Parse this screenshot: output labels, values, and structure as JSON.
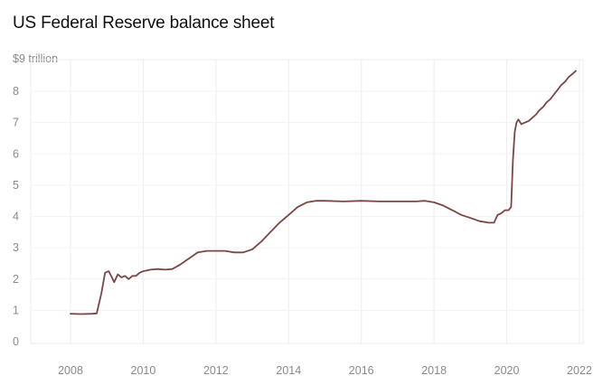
{
  "chart_data": {
    "type": "line",
    "title": "US Federal Reserve balance sheet",
    "ylabel": "$9 trillion",
    "xlabel": "",
    "xlim": [
      2007.0,
      2022.0
    ],
    "ylim": [
      0,
      9
    ],
    "x_ticks": [
      "2008",
      "2010",
      "2012",
      "2014",
      "2016",
      "2018",
      "2020",
      "2022"
    ],
    "y_ticks": [
      "0",
      "1",
      "2",
      "3",
      "4",
      "5",
      "6",
      "7",
      "8"
    ],
    "grid": true,
    "line_color": "#7a4646",
    "series": [
      {
        "x": [
          2008.0,
          2008.3,
          2008.6,
          2008.72,
          2008.85,
          2008.95,
          2009.05,
          2009.12,
          2009.2,
          2009.3,
          2009.4,
          2009.5,
          2009.6,
          2009.7,
          2009.8,
          2009.9,
          2010.0,
          2010.2,
          2010.4,
          2010.6,
          2010.8,
          2011.0,
          2011.25,
          2011.5,
          2011.75,
          2012.0,
          2012.25,
          2012.5,
          2012.75,
          2013.0,
          2013.25,
          2013.5,
          2013.75,
          2014.0,
          2014.25,
          2014.5,
          2014.75,
          2015.0,
          2015.5,
          2016.0,
          2016.5,
          2017.0,
          2017.5,
          2017.75,
          2018.0,
          2018.25,
          2018.5,
          2018.75,
          2019.0,
          2019.25,
          2019.5,
          2019.65,
          2019.75,
          2019.85,
          2019.95,
          2020.05,
          2020.12,
          2020.17,
          2020.22,
          2020.27,
          2020.32,
          2020.4,
          2020.5,
          2020.6,
          2020.7,
          2020.8,
          2020.9,
          2021.0,
          2021.1,
          2021.2,
          2021.3,
          2021.4,
          2021.5,
          2021.6,
          2021.7,
          2021.8,
          2021.9
        ],
        "values": [
          0.89,
          0.88,
          0.89,
          0.9,
          1.55,
          2.2,
          2.25,
          2.1,
          1.9,
          2.15,
          2.05,
          2.1,
          2.0,
          2.1,
          2.1,
          2.2,
          2.25,
          2.3,
          2.32,
          2.3,
          2.32,
          2.45,
          2.65,
          2.85,
          2.9,
          2.9,
          2.9,
          2.85,
          2.85,
          2.95,
          3.2,
          3.5,
          3.8,
          4.05,
          4.3,
          4.45,
          4.5,
          4.5,
          4.48,
          4.5,
          4.48,
          4.48,
          4.48,
          4.5,
          4.45,
          4.35,
          4.2,
          4.05,
          3.95,
          3.85,
          3.8,
          3.8,
          4.05,
          4.1,
          4.2,
          4.2,
          4.3,
          5.8,
          6.7,
          7.0,
          7.1,
          6.95,
          7.0,
          7.05,
          7.15,
          7.25,
          7.4,
          7.5,
          7.65,
          7.75,
          7.9,
          8.05,
          8.2,
          8.3,
          8.45,
          8.55,
          8.65
        ]
      }
    ]
  }
}
